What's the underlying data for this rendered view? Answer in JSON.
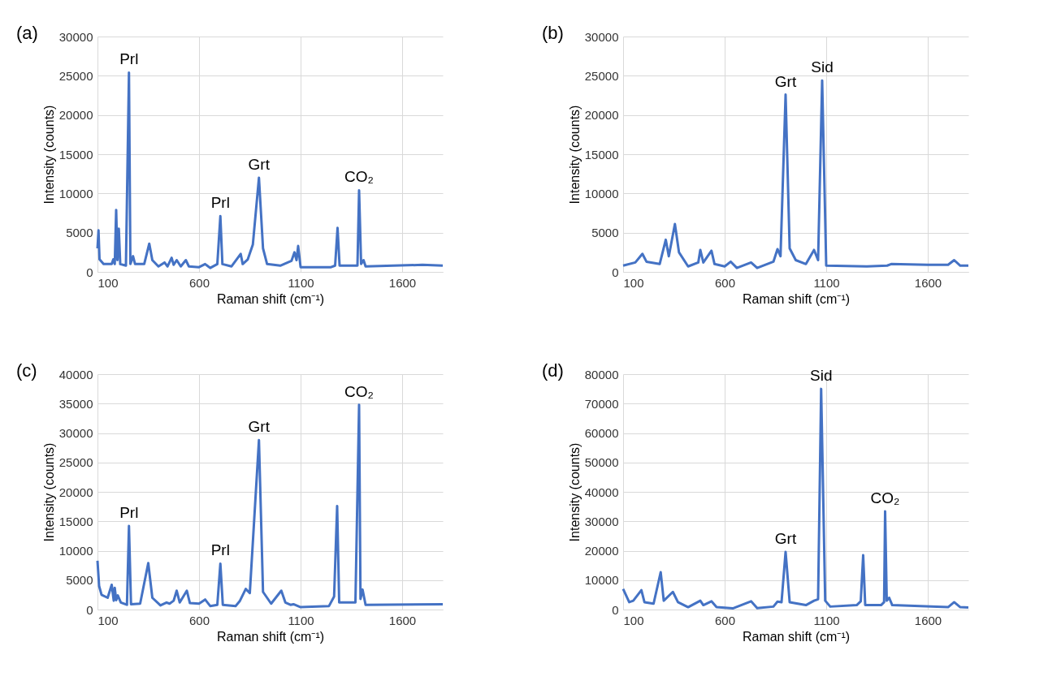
{
  "chart_data": [
    {
      "type": "line",
      "xlabel": "Raman shift (cm⁻¹)",
      "ylabel": "Intensity (counts)",
      "xlim": [
        100,
        1800
      ],
      "xticks": [
        100,
        600,
        1100,
        1600
      ],
      "ylim": [
        0,
        30000
      ],
      "yticks": [
        0,
        5000,
        10000,
        15000,
        20000,
        25000,
        30000
      ],
      "grid": true,
      "line_style": "solid",
      "marker": "none",
      "annotations": [
        "(a)",
        {
          "text": "Prl",
          "x": 255,
          "y": 25400
        },
        {
          "text": "Prl",
          "x": 705,
          "y": 7100
        },
        {
          "text": "Grt",
          "x": 895,
          "y": 12000
        },
        {
          "text": "CO₂",
          "x": 1388,
          "y": 10400
        }
      ],
      "series": [
        {
          "color": "#4472c4",
          "x": [
            100,
            105,
            110,
            130,
            170,
            178,
            185,
            192,
            198,
            205,
            212,
            240,
            255,
            262,
            275,
            285,
            330,
            355,
            370,
            400,
            430,
            445,
            465,
            475,
            490,
            510,
            535,
            550,
            600,
            630,
            655,
            690,
            705,
            715,
            760,
            805,
            815,
            840,
            865,
            895,
            915,
            935,
            1000,
            1055,
            1070,
            1080,
            1088,
            1100,
            1250,
            1270,
            1282,
            1292,
            1380,
            1388,
            1398,
            1410,
            1420,
            1700,
            1800
          ],
          "values": [
            3000,
            5300,
            1600,
            1000,
            1000,
            1600,
            1000,
            7900,
            1500,
            5500,
            1000,
            800,
            25400,
            1000,
            2000,
            1000,
            1000,
            3600,
            1500,
            700,
            1200,
            700,
            1800,
            900,
            1500,
            700,
            1500,
            700,
            600,
            1000,
            500,
            1000,
            7100,
            1000,
            700,
            2300,
            1000,
            1600,
            3500,
            12000,
            3000,
            1000,
            800,
            1400,
            2500,
            1500,
            3300,
            600,
            600,
            800,
            5600,
            800,
            800,
            10400,
            1000,
            1500,
            700,
            900,
            800
          ]
        }
      ]
    },
    {
      "type": "line",
      "xlabel": "Raman shift (cm⁻¹)",
      "ylabel": "Intensity (counts)",
      "xlim": [
        100,
        1800
      ],
      "xticks": [
        100,
        600,
        1100,
        1600
      ],
      "ylim": [
        0,
        30000
      ],
      "yticks": [
        0,
        5000,
        10000,
        15000,
        20000,
        25000,
        30000
      ],
      "grid": true,
      "line_style": "solid",
      "marker": "none",
      "annotations": [
        "(b)",
        {
          "text": "Grt",
          "x": 900,
          "y": 22600
        },
        {
          "text": "Sid",
          "x": 1080,
          "y": 24400
        }
      ],
      "series": [
        {
          "color": "#4472c4",
          "x": [
            100,
            160,
            195,
            215,
            280,
            310,
            325,
            355,
            375,
            420,
            470,
            480,
            495,
            535,
            550,
            600,
            630,
            660,
            730,
            760,
            840,
            860,
            875,
            900,
            920,
            950,
            1000,
            1040,
            1060,
            1080,
            1100,
            1300,
            1400,
            1420,
            1600,
            1700,
            1730,
            1760,
            1800
          ],
          "values": [
            800,
            1200,
            2300,
            1300,
            1000,
            4100,
            2000,
            6100,
            2500,
            700,
            1200,
            2800,
            1200,
            2700,
            1000,
            700,
            1300,
            500,
            1200,
            500,
            1300,
            2900,
            2000,
            22600,
            3000,
            1500,
            1000,
            2800,
            1500,
            24400,
            800,
            700,
            800,
            1000,
            900,
            900,
            1500,
            800,
            800
          ]
        }
      ]
    },
    {
      "type": "line",
      "xlabel": "Raman shift (cm⁻¹)",
      "ylabel": "Intensity (counts)",
      "xlim": [
        100,
        1800
      ],
      "xticks": [
        100,
        600,
        1100,
        1600
      ],
      "ylim": [
        0,
        40000
      ],
      "yticks": [
        0,
        5000,
        10000,
        15000,
        20000,
        25000,
        30000,
        35000,
        40000
      ],
      "grid": true,
      "line_style": "solid",
      "marker": "none",
      "annotations": [
        "(c)",
        {
          "text": "Prl",
          "x": 255,
          "y": 14200
        },
        {
          "text": "Prl",
          "x": 705,
          "y": 7800
        },
        {
          "text": "Grt",
          "x": 895,
          "y": 28800
        },
        {
          "text": "CO₂",
          "x": 1388,
          "y": 34800
        }
      ],
      "series": [
        {
          "color": "#4472c4",
          "x": [
            100,
            108,
            120,
            150,
            170,
            180,
            185,
            192,
            200,
            215,
            245,
            255,
            265,
            310,
            350,
            370,
            410,
            440,
            455,
            475,
            490,
            505,
            540,
            555,
            600,
            630,
            655,
            690,
            705,
            717,
            780,
            800,
            830,
            850,
            895,
            915,
            935,
            955,
            1005,
            1025,
            1050,
            1065,
            1100,
            1240,
            1265,
            1280,
            1290,
            1370,
            1388,
            1395,
            1405,
            1420,
            1800
          ],
          "values": [
            8300,
            4000,
            2500,
            2000,
            4200,
            1500,
            3700,
            1600,
            2400,
            1200,
            800,
            14200,
            900,
            1000,
            7900,
            2000,
            700,
            1200,
            1000,
            1500,
            3200,
            1200,
            3200,
            1100,
            1000,
            1700,
            600,
            800,
            7800,
            800,
            600,
            1400,
            3500,
            2800,
            28800,
            3000,
            2000,
            1000,
            3200,
            1200,
            800,
            900,
            400,
            600,
            2200,
            17600,
            1200,
            1200,
            34800,
            1800,
            3400,
            800,
            900
          ]
        }
      ]
    },
    {
      "type": "line",
      "xlabel": "Raman shift (cm⁻¹)",
      "ylabel": "Intensity (counts)",
      "xlim": [
        100,
        1800
      ],
      "xticks": [
        100,
        600,
        1100,
        1600
      ],
      "ylim": [
        0,
        80000
      ],
      "yticks": [
        0,
        10000,
        20000,
        30000,
        40000,
        50000,
        60000,
        70000,
        80000
      ],
      "grid": true,
      "line_style": "solid",
      "marker": "none",
      "annotations": [
        "(d)",
        {
          "text": "Grt",
          "x": 900,
          "y": 19600
        },
        {
          "text": "Sid",
          "x": 1075,
          "y": 75000
        },
        {
          "text": "CO₂",
          "x": 1390,
          "y": 33400
        }
      ],
      "series": [
        {
          "color": "#4472c4",
          "x": [
            100,
            130,
            150,
            190,
            205,
            250,
            285,
            300,
            345,
            370,
            420,
            480,
            495,
            535,
            560,
            640,
            730,
            760,
            840,
            860,
            880,
            900,
            920,
            1000,
            1040,
            1060,
            1075,
            1095,
            1120,
            1250,
            1270,
            1282,
            1292,
            1370,
            1385,
            1390,
            1398,
            1410,
            1425,
            1700,
            1730,
            1760,
            1800
          ],
          "values": [
            7000,
            2500,
            3000,
            6600,
            2500,
            2000,
            12700,
            3000,
            6000,
            2500,
            800,
            3000,
            1500,
            2800,
            800,
            400,
            2800,
            500,
            1000,
            2700,
            2500,
            19600,
            2500,
            1500,
            3000,
            3500,
            75000,
            3000,
            1000,
            1500,
            2800,
            18500,
            1500,
            1500,
            2500,
            33400,
            3000,
            4000,
            1500,
            800,
            2500,
            800,
            700
          ]
        }
      ]
    }
  ]
}
